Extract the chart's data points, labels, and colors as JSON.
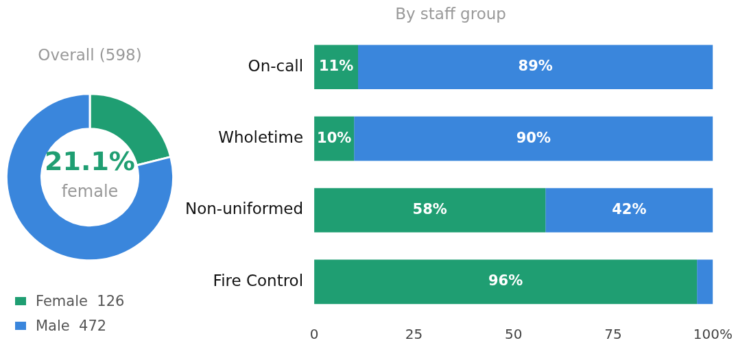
{
  "chart_data": [
    {
      "type": "donut",
      "title": "Overall (598)",
      "categories": [
        "Female  126",
        "Male  472"
      ],
      "values": [
        126,
        472
      ],
      "colors": [
        "#1f9e72",
        "#3a86dc"
      ],
      "legend": "bottom left",
      "annotations": [
        "21.1%",
        "female"
      ]
    },
    {
      "type": "bar",
      "orientation": "horizontal",
      "stacked": true,
      "title": "By staff group",
      "categories": [
        "On-call",
        "Wholetime",
        "Non-uniformed",
        "Fire Control"
      ],
      "series": [
        {
          "color": "#1f9e72",
          "values": [
            11,
            10,
            58,
            96
          ],
          "value_labels": [
            "11%",
            "10%",
            "58%",
            "96%"
          ]
        },
        {
          "color": "#3a86dc",
          "values": [
            89,
            90,
            42,
            4
          ],
          "value_labels": [
            "89%",
            "90%",
            "42%",
            null
          ]
        }
      ],
      "xlim": [
        0,
        100
      ],
      "xticks": [
        0,
        25,
        50,
        75,
        {
          "value": 100,
          "label": "100%"
        }
      ],
      "grid": false,
      "legend": false
    }
  ]
}
